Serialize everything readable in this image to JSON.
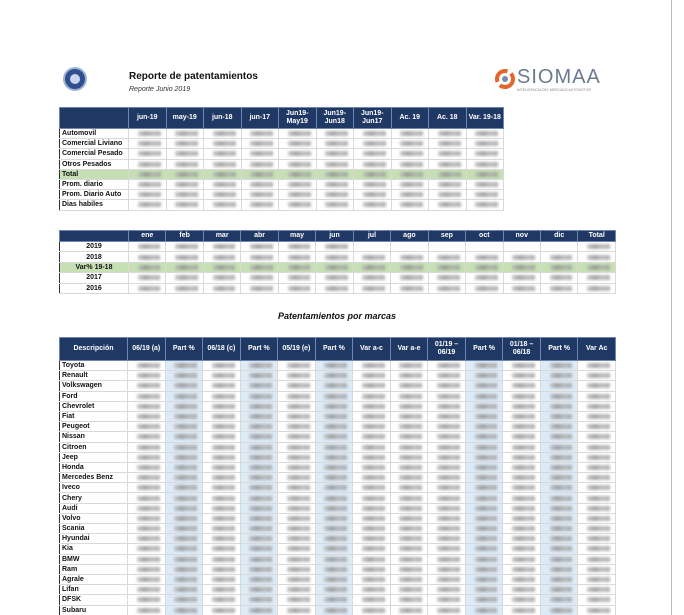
{
  "header": {
    "title": "Reporte de patentamientos",
    "subtitle": "Reporte Junio 2019",
    "logo_text": "SIOMAA",
    "logo_tagline": "INTELIGENCIA DEL MERCADO AUTOMOTOR"
  },
  "summary_table": {
    "columns": [
      "jun-19",
      "may-19",
      "jun-18",
      "jun-17",
      "Jun19-May19",
      "Jun19-Jun18",
      "Jun19-Jun17",
      "Ac. 19",
      "Ac. 18",
      "Var. 19-18"
    ],
    "rows": [
      "Automovil",
      "Comercial Liviano",
      "Comercial Pesado",
      "Otros Pesados",
      "Total",
      "Prom. diario",
      "Prom. Diario Auto",
      "Dias habiles"
    ]
  },
  "monthly_table": {
    "columns": [
      "ene",
      "feb",
      "mar",
      "abr",
      "may",
      "jun",
      "jul",
      "ago",
      "sep",
      "oct",
      "nov",
      "dic",
      "Total"
    ],
    "rows": [
      "2019",
      "2018",
      "Var% 19-18",
      "2017",
      "2016"
    ]
  },
  "section_title": "Patentamientos por marcas",
  "brands_table": {
    "columns": [
      "Descripción",
      "06/19 (a)",
      "Part %",
      "06/18 (c)",
      "Part %",
      "05/19 (e)",
      "Part %",
      "Var a-c",
      "Var a-e",
      "01/19 – 06/19",
      "Part %",
      "01/18 – 06/18",
      "Part %",
      "Var Ac"
    ],
    "rows": [
      "Toyota",
      "Renault",
      "Volkswagen",
      "Ford",
      "Chevrolet",
      "Fiat",
      "Peugeot",
      "Nissan",
      "Citroen",
      "Jeep",
      "Honda",
      "Mercedes Benz",
      "Iveco",
      "Chery",
      "Audi",
      "Volvo",
      "Scania",
      "Hyundai",
      "Kia",
      "BMW",
      "Ram",
      "Agrale",
      "Lifan",
      "DFSK",
      "Subaru"
    ]
  }
}
